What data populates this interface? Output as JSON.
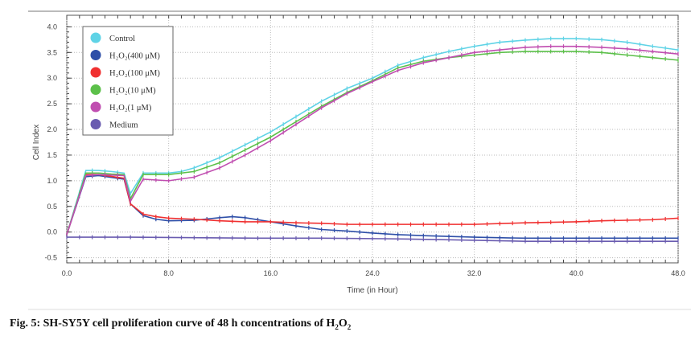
{
  "caption": {
    "prefix": "Fig. 5: SH-SY5Y cell proliferation curve of 48 h concentrations of H",
    "sub1": "2",
    "mid": "O",
    "sub2": "2"
  },
  "chart_data": {
    "type": "line",
    "title": "",
    "xlabel": "Time (in Hour)",
    "ylabel": "Cell Index",
    "xlim": [
      0,
      48
    ],
    "ylim": [
      -0.6,
      4.1
    ],
    "xticks": [
      "0.0",
      "8.0",
      "16.0",
      "24.0",
      "32.0",
      "40.0",
      "48.0"
    ],
    "yticks": [
      "4.0",
      "3.5",
      "3.0",
      "2.5",
      "2.0",
      "1.5",
      "1.0",
      "0.5",
      "0.0",
      "-0.5"
    ],
    "grid": true,
    "legend_position": "top-left",
    "series": [
      {
        "name": "Control",
        "color": "#5fd3e6",
        "x": [
          0,
          1.5,
          2.5,
          3.5,
          4.5,
          5,
          6,
          8,
          9,
          10,
          12,
          14,
          16,
          18,
          20,
          22,
          24,
          26,
          28,
          30,
          32,
          34,
          36,
          38,
          40,
          42,
          44,
          46,
          48
        ],
        "y": [
          -0.05,
          1.2,
          1.2,
          1.18,
          1.15,
          0.75,
          1.15,
          1.15,
          1.18,
          1.25,
          1.45,
          1.7,
          1.95,
          2.25,
          2.55,
          2.8,
          3.0,
          3.25,
          3.4,
          3.52,
          3.62,
          3.7,
          3.74,
          3.77,
          3.77,
          3.75,
          3.7,
          3.62,
          3.55
        ]
      },
      {
        "name": "H₂O₂(400 μM)",
        "color": "#2e4fa8",
        "x": [
          0,
          1.5,
          2.5,
          4.5,
          5,
          6,
          7,
          8,
          10,
          12,
          13,
          14,
          16,
          18,
          20,
          22,
          24,
          26,
          28,
          32,
          36,
          40,
          44,
          48
        ],
        "y": [
          -0.05,
          1.08,
          1.1,
          1.03,
          0.55,
          0.32,
          0.25,
          0.22,
          0.23,
          0.28,
          0.3,
          0.28,
          0.2,
          0.12,
          0.05,
          0.02,
          -0.02,
          -0.05,
          -0.07,
          -0.1,
          -0.12,
          -0.12,
          -0.12,
          -0.12
        ]
      },
      {
        "name": "H₂O₂(100 μM)",
        "color": "#f03030",
        "x": [
          0,
          1.5,
          2.5,
          4.5,
          5,
          6,
          7,
          8,
          10,
          12,
          14,
          16,
          18,
          20,
          22,
          24,
          28,
          32,
          36,
          40,
          42,
          46,
          48
        ],
        "y": [
          -0.05,
          1.12,
          1.12,
          1.05,
          0.55,
          0.35,
          0.3,
          0.27,
          0.25,
          0.22,
          0.2,
          0.2,
          0.18,
          0.17,
          0.15,
          0.15,
          0.15,
          0.15,
          0.18,
          0.2,
          0.22,
          0.24,
          0.27
        ]
      },
      {
        "name": "H₂O₂(10 μM)",
        "color": "#5cc04a",
        "x": [
          0,
          1.5,
          2.5,
          3.5,
          4.5,
          5,
          6,
          8,
          10,
          12,
          14,
          16,
          18,
          20,
          22,
          24,
          26,
          28,
          30,
          32,
          34,
          36,
          38,
          40,
          42,
          44,
          46,
          48
        ],
        "y": [
          -0.05,
          1.15,
          1.15,
          1.13,
          1.12,
          0.65,
          1.12,
          1.12,
          1.18,
          1.35,
          1.6,
          1.85,
          2.15,
          2.45,
          2.72,
          2.95,
          3.2,
          3.33,
          3.4,
          3.45,
          3.5,
          3.52,
          3.52,
          3.52,
          3.5,
          3.45,
          3.4,
          3.35
        ]
      },
      {
        "name": "H₂O₂(1 μM)",
        "color": "#c04eb0",
        "x": [
          0,
          1.5,
          2.5,
          4.5,
          5,
          6,
          8,
          10,
          12,
          14,
          16,
          18,
          20,
          22,
          24,
          26,
          28,
          30,
          32,
          34,
          36,
          38,
          40,
          42,
          44,
          46,
          48
        ],
        "y": [
          -0.05,
          1.1,
          1.12,
          1.1,
          0.6,
          1.03,
          1.0,
          1.07,
          1.25,
          1.5,
          1.78,
          2.1,
          2.42,
          2.7,
          2.93,
          3.15,
          3.3,
          3.4,
          3.5,
          3.55,
          3.6,
          3.62,
          3.62,
          3.6,
          3.57,
          3.52,
          3.47
        ]
      },
      {
        "name": "Medium",
        "color": "#6a5cb0",
        "x": [
          0,
          5,
          10,
          15,
          20,
          25,
          30,
          36,
          40,
          44,
          48
        ],
        "y": [
          -0.1,
          -0.1,
          -0.11,
          -0.12,
          -0.12,
          -0.13,
          -0.15,
          -0.18,
          -0.18,
          -0.18,
          -0.18
        ]
      }
    ]
  }
}
